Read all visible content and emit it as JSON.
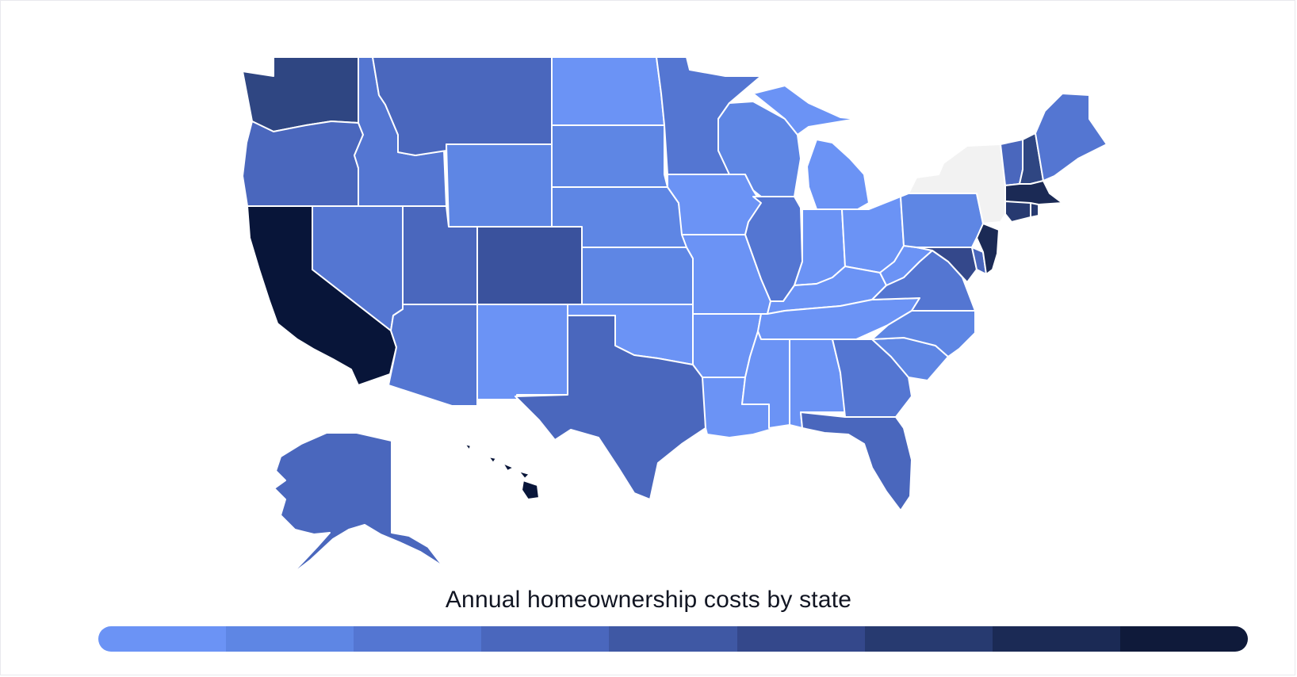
{
  "legend": {
    "title": "Annual homeownership costs by state",
    "colors": [
      "#6b93f5",
      "#5e86e4",
      "#5476d2",
      "#4a67bd",
      "#3f58a4",
      "#34488b",
      "#273a70",
      "#1b2a55",
      "#0f1a3a"
    ]
  },
  "no_data_color": "#f2f2f2",
  "states": [
    {
      "name": "washington",
      "color": "#2f4682"
    },
    {
      "name": "oregon",
      "color": "#4a67bd"
    },
    {
      "name": "california",
      "color": "#081539"
    },
    {
      "name": "nevada",
      "color": "#5476d2"
    },
    {
      "name": "idaho",
      "color": "#5476d2"
    },
    {
      "name": "montana",
      "color": "#4a67bd"
    },
    {
      "name": "wyoming",
      "color": "#5e86e4"
    },
    {
      "name": "utah",
      "color": "#4a67bd"
    },
    {
      "name": "colorado",
      "color": "#3a529d"
    },
    {
      "name": "arizona",
      "color": "#5476d2"
    },
    {
      "name": "new-mexico",
      "color": "#6b93f5"
    },
    {
      "name": "north-dakota",
      "color": "#6b93f5"
    },
    {
      "name": "south-dakota",
      "color": "#5e86e4"
    },
    {
      "name": "nebraska",
      "color": "#5e86e4"
    },
    {
      "name": "kansas",
      "color": "#5e86e4"
    },
    {
      "name": "oklahoma",
      "color": "#6b93f5"
    },
    {
      "name": "texas",
      "color": "#4a67bd"
    },
    {
      "name": "minnesota",
      "color": "#5476d2"
    },
    {
      "name": "iowa",
      "color": "#6b93f5"
    },
    {
      "name": "missouri",
      "color": "#6b93f5"
    },
    {
      "name": "arkansas",
      "color": "#6b93f5"
    },
    {
      "name": "louisiana",
      "color": "#6b93f5"
    },
    {
      "name": "wisconsin",
      "color": "#5e86e4"
    },
    {
      "name": "illinois",
      "color": "#5476d2"
    },
    {
      "name": "michigan",
      "color": "#6b93f5"
    },
    {
      "name": "indiana",
      "color": "#6b93f5"
    },
    {
      "name": "ohio",
      "color": "#6b93f5"
    },
    {
      "name": "kentucky",
      "color": "#6b93f5"
    },
    {
      "name": "tennessee",
      "color": "#6b93f5"
    },
    {
      "name": "mississippi",
      "color": "#6b93f5"
    },
    {
      "name": "alabama",
      "color": "#6b93f5"
    },
    {
      "name": "georgia",
      "color": "#5476d2"
    },
    {
      "name": "florida",
      "color": "#4a67bd"
    },
    {
      "name": "south-carolina",
      "color": "#5e86e4"
    },
    {
      "name": "north-carolina",
      "color": "#5e86e4"
    },
    {
      "name": "virginia",
      "color": "#5476d2"
    },
    {
      "name": "west-virginia",
      "color": "#6b93f5"
    },
    {
      "name": "maryland",
      "color": "#34488b"
    },
    {
      "name": "delaware",
      "color": "#4a67bd"
    },
    {
      "name": "new-jersey",
      "color": "#1b2a55"
    },
    {
      "name": "pennsylvania",
      "color": "#5e86e4"
    },
    {
      "name": "new-york",
      "color": "#f2f2f2"
    },
    {
      "name": "vermont",
      "color": "#4a67bd"
    },
    {
      "name": "new-hampshire",
      "color": "#2f4682"
    },
    {
      "name": "maine",
      "color": "#5476d2"
    },
    {
      "name": "massachusetts",
      "color": "#1b2a55"
    },
    {
      "name": "connecticut",
      "color": "#273a70"
    },
    {
      "name": "rhode-island",
      "color": "#273a70"
    },
    {
      "name": "alaska",
      "color": "#4a67bd"
    },
    {
      "name": "hawaii",
      "color": "#081539"
    }
  ]
}
